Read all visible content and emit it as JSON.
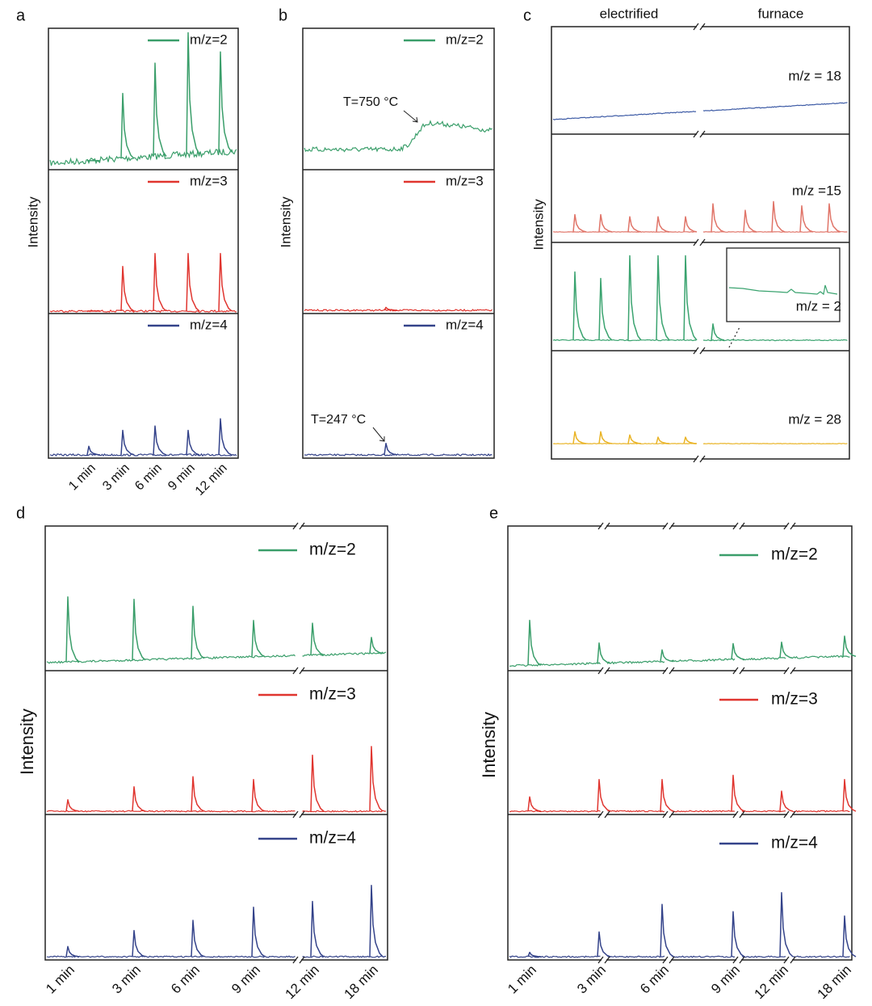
{
  "chart_data": [
    {
      "type": "line",
      "panel": "a",
      "y_label": "Intensity",
      "categories": [
        "1 min",
        "3 min",
        "6 min",
        "9 min",
        "12 min"
      ],
      "series": [
        {
          "name": "m/z=2",
          "color": "#3a9e6a",
          "values": [
            0,
            46,
            66,
            86,
            71
          ]
        },
        {
          "name": "m/z=3",
          "color": "#e0352f",
          "values": [
            0,
            31,
            40,
            40,
            40
          ]
        },
        {
          "name": "m/z=4",
          "color": "#34438a",
          "values": [
            6,
            17,
            20,
            17,
            25
          ]
        }
      ]
    },
    {
      "type": "line",
      "panel": "b",
      "y_label": "Intensity",
      "annotations": [
        "T=750 °C",
        "T=247 °C"
      ],
      "series": [
        {
          "name": "m/z=2",
          "color": "#3a9e6a",
          "values": []
        },
        {
          "name": "m/z=3",
          "color": "#e0352f",
          "values": [
            2
          ]
        },
        {
          "name": "m/z=4",
          "color": "#34438a",
          "values": [
            8
          ]
        }
      ]
    },
    {
      "type": "line",
      "panel": "c",
      "y_label": "Intensity",
      "headers": [
        "electrified",
        "furnace"
      ],
      "series": [
        {
          "name": "m/z = 18",
          "color": "#3c5aa5",
          "values": []
        },
        {
          "name": "m/z =15",
          "color": "#e07468",
          "values": [
            16,
            16,
            14,
            14,
            14,
            26,
            20,
            28,
            24,
            26
          ]
        },
        {
          "name": "m/z = 2",
          "color": "#3aa36f",
          "values": [
            63,
            57,
            78,
            78,
            78,
            15
          ]
        },
        {
          "name": "m/z = 28",
          "color": "#e9b324",
          "values": [
            11,
            11,
            8,
            6,
            6
          ]
        }
      ]
    },
    {
      "type": "line",
      "panel": "d",
      "y_label": "Intensity",
      "categories": [
        "1 min",
        "3 min",
        "6 min",
        "9 min",
        "12 min",
        "18 min"
      ],
      "series": [
        {
          "name": "m/z=2",
          "color": "#3a9e6a",
          "values": [
            45,
            42,
            36,
            25,
            22,
            11
          ]
        },
        {
          "name": "m/z=3",
          "color": "#e0352f",
          "values": [
            8,
            17,
            24,
            22,
            39,
            45
          ]
        },
        {
          "name": "m/z=4",
          "color": "#34438a",
          "values": [
            7,
            18,
            25,
            34,
            38,
            49
          ]
        }
      ]
    },
    {
      "type": "line",
      "panel": "e",
      "y_label": "Intensity",
      "categories": [
        "1 min",
        "3 min",
        "6 min",
        "9 min",
        "12 min",
        "18 min"
      ],
      "series": [
        {
          "name": "m/z=2",
          "color": "#3a9e6a",
          "values": [
            31,
            14,
            8,
            11,
            11,
            14
          ]
        },
        {
          "name": "m/z=3",
          "color": "#e0352f",
          "values": [
            10,
            22,
            22,
            25,
            14,
            22
          ]
        },
        {
          "name": "m/z=4",
          "color": "#34438a",
          "values": [
            3,
            17,
            36,
            31,
            44,
            28
          ]
        }
      ]
    }
  ]
}
